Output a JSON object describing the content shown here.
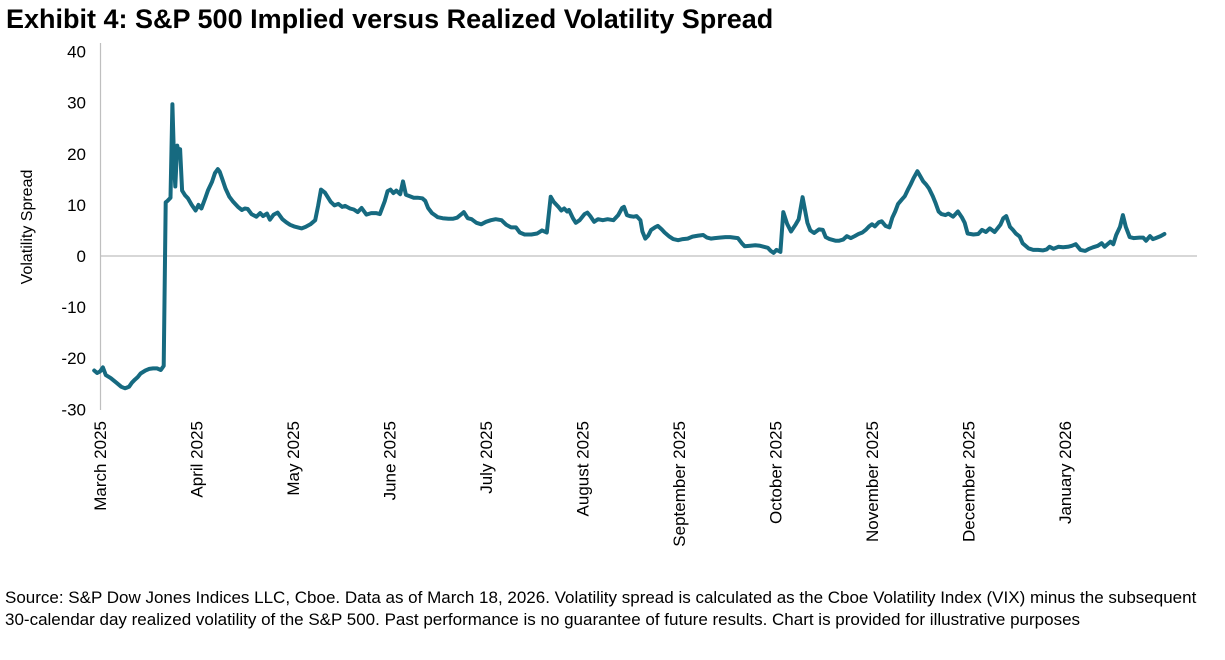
{
  "title": "Exhibit 4: S&P 500 Implied versus Realized Volatility Spread",
  "footer": "Source: S&P Dow Jones Indices LLC, Cboe. Data as of March 18, 2026. Volatility spread is calculated as the Cboe Volatility Index (VIX) minus the subsequent 30-calendar day realized volatility of the S&P 500. Past performance is no guarantee of future results. Chart is provided for illustrative purposes",
  "chart_data": {
    "type": "line",
    "title": "Exhibit 4: S&P 500 Implied versus Realized Volatility Spread",
    "xlabel": "",
    "ylabel": "Volatility Spread",
    "ylim": [
      -30,
      40
    ],
    "y_ticks": [
      40,
      30,
      20,
      10,
      0,
      -10,
      -20,
      -30
    ],
    "x_tick_labels": [
      "March 2025",
      "April 2025",
      "May 2025",
      "June 2025",
      "July 2025",
      "August 2025",
      "September 2025",
      "October 2025",
      "November 2025",
      "December 2025",
      "January 2026"
    ],
    "x_unit": "months since March 2025 tick (0 = March 2025, 10 = January 2026)",
    "grid": "zero line only",
    "legend": "none",
    "axis_color": "#bfbfbf",
    "series": [
      {
        "name": "Volatility spread (VIX minus subsequent 30-day realized volatility)",
        "color": "#166a80",
        "points": [
          [
            -0.07,
            -22.4
          ],
          [
            -0.04,
            -22.9
          ],
          [
            -0.01,
            -22.6
          ],
          [
            0.02,
            -21.8
          ],
          [
            0.05,
            -23.3
          ],
          [
            0.1,
            -23.9
          ],
          [
            0.16,
            -24.8
          ],
          [
            0.21,
            -25.6
          ],
          [
            0.25,
            -25.9
          ],
          [
            0.29,
            -25.6
          ],
          [
            0.32,
            -24.8
          ],
          [
            0.35,
            -24.2
          ],
          [
            0.38,
            -23.7
          ],
          [
            0.41,
            -23
          ],
          [
            0.46,
            -22.4
          ],
          [
            0.5,
            -22.1
          ],
          [
            0.54,
            -22
          ],
          [
            0.58,
            -22
          ],
          [
            0.62,
            -22.3
          ],
          [
            0.65,
            -21.5
          ],
          [
            0.67,
            10.5
          ],
          [
            0.69,
            10.8
          ],
          [
            0.72,
            11.4
          ],
          [
            0.74,
            29.7
          ],
          [
            0.76,
            17
          ],
          [
            0.77,
            13.6
          ],
          [
            0.79,
            21.6
          ],
          [
            0.81,
            19.8
          ],
          [
            0.82,
            20.9
          ],
          [
            0.84,
            12.8
          ],
          [
            0.87,
            11.9
          ],
          [
            0.9,
            11.3
          ],
          [
            0.94,
            10
          ],
          [
            0.98,
            8.9
          ],
          [
            1.01,
            10
          ],
          [
            1.04,
            9.3
          ],
          [
            1.08,
            11.3
          ],
          [
            1.11,
            12.9
          ],
          [
            1.15,
            14.5
          ],
          [
            1.18,
            16.2
          ],
          [
            1.21,
            17
          ],
          [
            1.23,
            16.5
          ],
          [
            1.26,
            14.9
          ],
          [
            1.29,
            13.2
          ],
          [
            1.33,
            11.6
          ],
          [
            1.37,
            10.6
          ],
          [
            1.4,
            10
          ],
          [
            1.42,
            9.6
          ],
          [
            1.46,
            9
          ],
          [
            1.49,
            9.3
          ],
          [
            1.52,
            9.2
          ],
          [
            1.56,
            8.2
          ],
          [
            1.61,
            7.7
          ],
          [
            1.65,
            8.4
          ],
          [
            1.68,
            7.8
          ],
          [
            1.72,
            8.3
          ],
          [
            1.75,
            7.1
          ],
          [
            1.79,
            8.1
          ],
          [
            1.83,
            8.5
          ],
          [
            1.88,
            7.2
          ],
          [
            1.92,
            6.6
          ],
          [
            1.96,
            6.1
          ],
          [
            2,
            5.8
          ],
          [
            2.04,
            5.6
          ],
          [
            2.08,
            5.4
          ],
          [
            2.12,
            5.7
          ],
          [
            2.17,
            6.2
          ],
          [
            2.22,
            7
          ],
          [
            2.25,
            9.8
          ],
          [
            2.28,
            13
          ],
          [
            2.32,
            12.4
          ],
          [
            2.35,
            11.5
          ],
          [
            2.38,
            10.6
          ],
          [
            2.42,
            9.9
          ],
          [
            2.46,
            10.2
          ],
          [
            2.5,
            9.6
          ],
          [
            2.53,
            9.8
          ],
          [
            2.58,
            9.3
          ],
          [
            2.62,
            9.1
          ],
          [
            2.66,
            8.6
          ],
          [
            2.7,
            9.4
          ],
          [
            2.75,
            8.1
          ],
          [
            2.8,
            8.4
          ],
          [
            2.85,
            8.4
          ],
          [
            2.89,
            8.2
          ],
          [
            2.94,
            10.7
          ],
          [
            2.97,
            12.7
          ],
          [
            3,
            13
          ],
          [
            3.03,
            12.3
          ],
          [
            3.06,
            12.8
          ],
          [
            3.1,
            12.1
          ],
          [
            3.13,
            14.6
          ],
          [
            3.16,
            12
          ],
          [
            3.2,
            11.7
          ],
          [
            3.24,
            11.4
          ],
          [
            3.28,
            11.4
          ],
          [
            3.33,
            11.3
          ],
          [
            3.36,
            10.8
          ],
          [
            3.39,
            9.4
          ],
          [
            3.43,
            8.4
          ],
          [
            3.46,
            8
          ],
          [
            3.49,
            7.6
          ],
          [
            3.54,
            7.4
          ],
          [
            3.6,
            7.3
          ],
          [
            3.65,
            7.3
          ],
          [
            3.69,
            7.5
          ],
          [
            3.73,
            8.1
          ],
          [
            3.76,
            8.6
          ],
          [
            3.8,
            7.4
          ],
          [
            3.84,
            7.2
          ],
          [
            3.89,
            6.5
          ],
          [
            3.94,
            6.2
          ],
          [
            3.99,
            6.7
          ],
          [
            4.04,
            7
          ],
          [
            4.09,
            7.2
          ],
          [
            4.15,
            7
          ],
          [
            4.2,
            6.1
          ],
          [
            4.25,
            5.6
          ],
          [
            4.3,
            5.6
          ],
          [
            4.34,
            4.6
          ],
          [
            4.39,
            4.2
          ],
          [
            4.46,
            4.2
          ],
          [
            4.52,
            4.4
          ],
          [
            4.57,
            5
          ],
          [
            4.62,
            4.6
          ],
          [
            4.66,
            11.6
          ],
          [
            4.69,
            10.6
          ],
          [
            4.74,
            9.6
          ],
          [
            4.77,
            8.9
          ],
          [
            4.8,
            9.3
          ],
          [
            4.83,
            8.7
          ],
          [
            4.85,
            9
          ],
          [
            4.89,
            7.4
          ],
          [
            4.92,
            6.5
          ],
          [
            4.96,
            7
          ],
          [
            5.01,
            8.2
          ],
          [
            5.04,
            8.5
          ],
          [
            5.07,
            7.8
          ],
          [
            5.11,
            6.7
          ],
          [
            5.15,
            7.2
          ],
          [
            5.2,
            7
          ],
          [
            5.25,
            7.2
          ],
          [
            5.31,
            7
          ],
          [
            5.36,
            8
          ],
          [
            5.4,
            9.4
          ],
          [
            5.42,
            9.6
          ],
          [
            5.45,
            8
          ],
          [
            5.48,
            7.8
          ],
          [
            5.52,
            7.7
          ],
          [
            5.55,
            7.8
          ],
          [
            5.59,
            7
          ],
          [
            5.61,
            4.8
          ],
          [
            5.64,
            3.4
          ],
          [
            5.67,
            4
          ],
          [
            5.7,
            5.1
          ],
          [
            5.74,
            5.6
          ],
          [
            5.77,
            5.9
          ],
          [
            5.81,
            5.2
          ],
          [
            5.84,
            4.6
          ],
          [
            5.89,
            3.8
          ],
          [
            5.93,
            3.3
          ],
          [
            5.98,
            3.1
          ],
          [
            6.03,
            3.3
          ],
          [
            6.08,
            3.4
          ],
          [
            6.13,
            3.8
          ],
          [
            6.19,
            4
          ],
          [
            6.24,
            4.1
          ],
          [
            6.28,
            3.6
          ],
          [
            6.32,
            3.4
          ],
          [
            6.36,
            3.5
          ],
          [
            6.41,
            3.6
          ],
          [
            6.47,
            3.7
          ],
          [
            6.52,
            3.7
          ],
          [
            6.56,
            3.6
          ],
          [
            6.6,
            3.5
          ],
          [
            6.64,
            2.5
          ],
          [
            6.67,
            1.9
          ],
          [
            6.73,
            2
          ],
          [
            6.78,
            2.1
          ],
          [
            6.83,
            2
          ],
          [
            6.87,
            1.8
          ],
          [
            6.91,
            1.6
          ],
          [
            6.94,
            1
          ],
          [
            6.97,
            0.6
          ],
          [
            7,
            1.2
          ],
          [
            7.04,
            0.8
          ],
          [
            7.07,
            8.6
          ],
          [
            7.11,
            6.3
          ],
          [
            7.15,
            4.8
          ],
          [
            7.2,
            6.2
          ],
          [
            7.23,
            7.2
          ],
          [
            7.27,
            11.5
          ],
          [
            7.32,
            6.5
          ],
          [
            7.35,
            5
          ],
          [
            7.39,
            4.5
          ],
          [
            7.44,
            5.2
          ],
          [
            7.48,
            5.1
          ],
          [
            7.51,
            3.7
          ],
          [
            7.55,
            3.3
          ],
          [
            7.61,
            3
          ],
          [
            7.65,
            3
          ],
          [
            7.69,
            3.2
          ],
          [
            7.73,
            3.9
          ],
          [
            7.77,
            3.5
          ],
          [
            7.81,
            3.9
          ],
          [
            7.85,
            4.3
          ],
          [
            7.89,
            4.6
          ],
          [
            7.93,
            5.2
          ],
          [
            7.96,
            5.8
          ],
          [
            7.99,
            6.2
          ],
          [
            8.02,
            5.8
          ],
          [
            8.06,
            6.6
          ],
          [
            8.09,
            6.8
          ],
          [
            8.13,
            5.9
          ],
          [
            8.17,
            5.6
          ],
          [
            8.2,
            7.5
          ],
          [
            8.23,
            8.7
          ],
          [
            8.26,
            10.2
          ],
          [
            8.3,
            11.1
          ],
          [
            8.33,
            11.7
          ],
          [
            8.36,
            12.9
          ],
          [
            8.39,
            14
          ],
          [
            8.42,
            15.2
          ],
          [
            8.46,
            16.6
          ],
          [
            8.49,
            15.6
          ],
          [
            8.52,
            14.6
          ],
          [
            8.55,
            14
          ],
          [
            8.58,
            13.2
          ],
          [
            8.62,
            11.7
          ],
          [
            8.65,
            10.3
          ],
          [
            8.68,
            8.7
          ],
          [
            8.71,
            8.2
          ],
          [
            8.75,
            8
          ],
          [
            8.78,
            8.3
          ],
          [
            8.83,
            7.7
          ],
          [
            8.88,
            8.7
          ],
          [
            8.92,
            7.6
          ],
          [
            8.95,
            6.5
          ],
          [
            8.98,
            4.4
          ],
          [
            9.04,
            4.2
          ],
          [
            9.09,
            4.3
          ],
          [
            9.13,
            5.1
          ],
          [
            9.17,
            4.7
          ],
          [
            9.21,
            5.4
          ],
          [
            9.26,
            4.7
          ],
          [
            9.32,
            6.1
          ],
          [
            9.35,
            7.4
          ],
          [
            9.38,
            7.8
          ],
          [
            9.42,
            5.7
          ],
          [
            9.45,
            5.1
          ],
          [
            9.48,
            4.4
          ],
          [
            9.52,
            3.8
          ],
          [
            9.55,
            2.5
          ],
          [
            9.61,
            1.5
          ],
          [
            9.66,
            1.2
          ],
          [
            9.71,
            1.2
          ],
          [
            9.76,
            1.1
          ],
          [
            9.8,
            1.3
          ],
          [
            9.83,
            1.8
          ],
          [
            9.87,
            1.4
          ],
          [
            9.92,
            1.8
          ],
          [
            9.97,
            1.7
          ],
          [
            10.02,
            1.8
          ],
          [
            10.06,
            2
          ],
          [
            10.1,
            2.3
          ],
          [
            10.15,
            1.2
          ],
          [
            10.2,
            1
          ],
          [
            10.24,
            1.4
          ],
          [
            10.28,
            1.7
          ],
          [
            10.33,
            2
          ],
          [
            10.37,
            2.5
          ],
          [
            10.4,
            1.8
          ],
          [
            10.46,
            2.8
          ],
          [
            10.49,
            2.3
          ],
          [
            10.52,
            4.1
          ],
          [
            10.56,
            5.7
          ],
          [
            10.59,
            8
          ],
          [
            10.62,
            5.7
          ],
          [
            10.66,
            3.7
          ],
          [
            10.7,
            3.5
          ],
          [
            10.76,
            3.6
          ],
          [
            10.8,
            3.6
          ],
          [
            10.83,
            3
          ],
          [
            10.87,
            3.9
          ],
          [
            10.9,
            3.3
          ],
          [
            10.93,
            3.5
          ],
          [
            10.98,
            3.9
          ],
          [
            11.02,
            4.3
          ]
        ]
      }
    ]
  }
}
